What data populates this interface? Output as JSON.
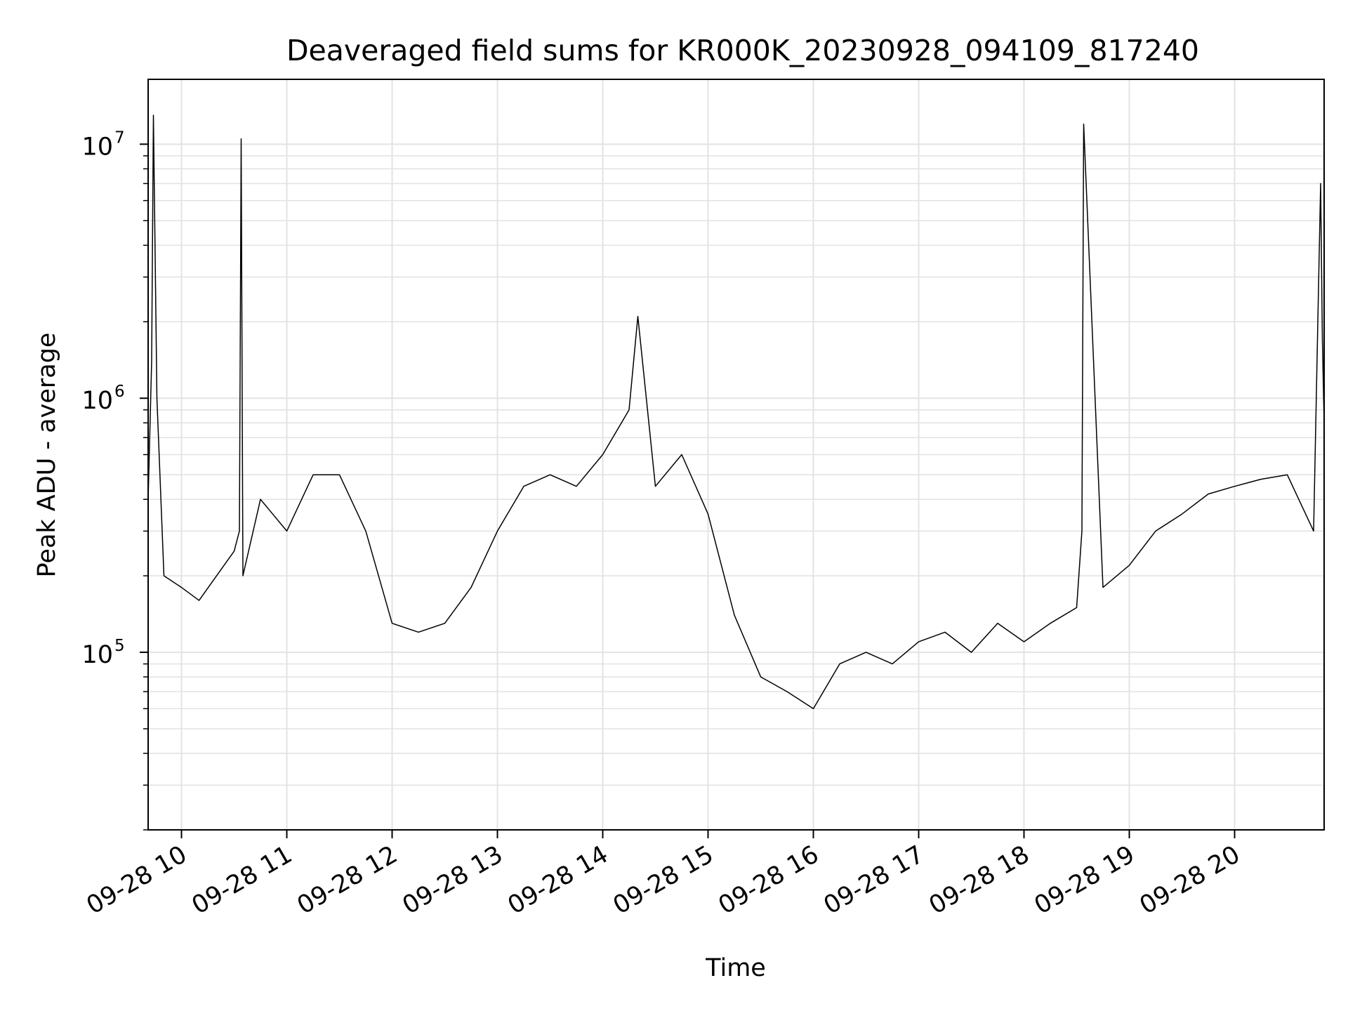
{
  "chart_data": {
    "type": "line",
    "title": "Deaveraged field sums for KR000K_20230928_094109_817240",
    "xlabel": "Time",
    "ylabel": "Peak ADU - average",
    "y_scale": "log",
    "ylim": [
      20000,
      18000000
    ],
    "xlim": [
      "2023-09-28 09:41",
      "2023-09-28 20:51"
    ],
    "grid": true,
    "line_color": "#000000",
    "x_ticks": [
      {
        "label": "09-28 10",
        "time": "2023-09-28 10:00"
      },
      {
        "label": "09-28 11",
        "time": "2023-09-28 11:00"
      },
      {
        "label": "09-28 12",
        "time": "2023-09-28 12:00"
      },
      {
        "label": "09-28 13",
        "time": "2023-09-28 13:00"
      },
      {
        "label": "09-28 14",
        "time": "2023-09-28 14:00"
      },
      {
        "label": "09-28 15",
        "time": "2023-09-28 15:00"
      },
      {
        "label": "09-28 16",
        "time": "2023-09-28 16:00"
      },
      {
        "label": "09-28 17",
        "time": "2023-09-28 17:00"
      },
      {
        "label": "09-28 18",
        "time": "2023-09-28 18:00"
      },
      {
        "label": "09-28 19",
        "time": "2023-09-28 19:00"
      },
      {
        "label": "09-28 20",
        "time": "2023-09-28 20:00"
      }
    ],
    "y_ticks": [
      {
        "base": "10",
        "exponent": "5",
        "value": 100000
      },
      {
        "base": "10",
        "exponent": "6",
        "value": 1000000
      },
      {
        "base": "10",
        "exponent": "7",
        "value": 10000000
      }
    ],
    "series": [
      {
        "time": [
          "2023-09-28 09:41",
          "2023-09-28 09:43",
          "2023-09-28 09:44",
          "2023-09-28 09:46",
          "2023-09-28 09:50",
          "2023-09-28 10:00",
          "2023-09-28 10:10",
          "2023-09-28 10:20",
          "2023-09-28 10:30",
          "2023-09-28 10:33",
          "2023-09-28 10:34",
          "2023-09-28 10:35",
          "2023-09-28 10:45",
          "2023-09-28 11:00",
          "2023-09-28 11:15",
          "2023-09-28 11:30",
          "2023-09-28 11:45",
          "2023-09-28 12:00",
          "2023-09-28 12:15",
          "2023-09-28 12:30",
          "2023-09-28 12:45",
          "2023-09-28 13:00",
          "2023-09-28 13:15",
          "2023-09-28 13:30",
          "2023-09-28 13:45",
          "2023-09-28 14:00",
          "2023-09-28 14:15",
          "2023-09-28 14:20",
          "2023-09-28 14:30",
          "2023-09-28 14:45",
          "2023-09-28 15:00",
          "2023-09-28 15:15",
          "2023-09-28 15:30",
          "2023-09-28 15:45",
          "2023-09-28 16:00",
          "2023-09-28 16:15",
          "2023-09-28 16:30",
          "2023-09-28 16:45",
          "2023-09-28 17:00",
          "2023-09-28 17:15",
          "2023-09-28 17:30",
          "2023-09-28 17:45",
          "2023-09-28 18:00",
          "2023-09-28 18:15",
          "2023-09-28 18:30",
          "2023-09-28 18:33",
          "2023-09-28 18:34",
          "2023-09-28 18:45",
          "2023-09-28 19:00",
          "2023-09-28 19:15",
          "2023-09-28 19:30",
          "2023-09-28 19:45",
          "2023-09-28 20:00",
          "2023-09-28 20:15",
          "2023-09-28 20:30",
          "2023-09-28 20:45",
          "2023-09-28 20:49",
          "2023-09-28 20:50",
          "2023-09-28 20:51"
        ],
        "values": [
          400000,
          1400000,
          13000000,
          1000000,
          200000,
          180000,
          160000,
          200000,
          250000,
          300000,
          10500000,
          200000,
          400000,
          300000,
          500000,
          500000,
          300000,
          130000,
          120000,
          130000,
          180000,
          300000,
          450000,
          500000,
          450000,
          600000,
          900000,
          2100000,
          450000,
          600000,
          350000,
          140000,
          80000,
          70000,
          60000,
          90000,
          100000,
          90000,
          110000,
          120000,
          100000,
          130000,
          110000,
          130000,
          150000,
          300000,
          12000000,
          180000,
          220000,
          300000,
          350000,
          420000,
          450000,
          480000,
          500000,
          300000,
          7000000,
          1700000,
          800000
        ]
      }
    ]
  }
}
